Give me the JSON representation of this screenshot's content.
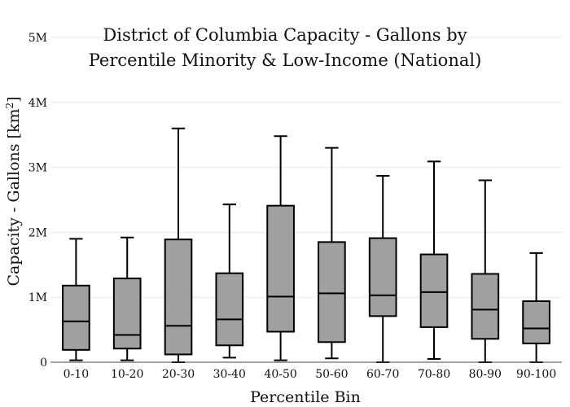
{
  "chart_data": {
    "type": "box",
    "title_lines": [
      "District of Columbia Capacity - Gallons by",
      "Percentile Minority & Low-Income (National)"
    ],
    "xlabel": "Percentile Bin",
    "ylabel_main": "Capacity - Gallons  [km",
    "ylabel_sup": "2",
    "ylabel_end": "]",
    "ylim": [
      0,
      5000000
    ],
    "yticks": [
      {
        "value": 0,
        "label": "0"
      },
      {
        "value": 1000000,
        "label": "1M"
      },
      {
        "value": 2000000,
        "label": "2M"
      },
      {
        "value": 3000000,
        "label": "3M"
      },
      {
        "value": 4000000,
        "label": "4M"
      },
      {
        "value": 5000000,
        "label": "5M"
      }
    ],
    "categories": [
      "0-10",
      "10-20",
      "20-30",
      "30-40",
      "40-50",
      "50-60",
      "60-70",
      "70-80",
      "80-90",
      "90-100"
    ],
    "boxes": [
      {
        "min": 30000,
        "q1": 190000,
        "median": 630000,
        "q3": 1180000,
        "max": 1900000
      },
      {
        "min": 30000,
        "q1": 210000,
        "median": 420000,
        "q3": 1290000,
        "max": 1920000
      },
      {
        "min": 0,
        "q1": 120000,
        "median": 560000,
        "q3": 1890000,
        "max": 3600000
      },
      {
        "min": 70000,
        "q1": 260000,
        "median": 660000,
        "q3": 1370000,
        "max": 2430000
      },
      {
        "min": 30000,
        "q1": 470000,
        "median": 1010000,
        "q3": 2410000,
        "max": 3480000
      },
      {
        "min": 60000,
        "q1": 310000,
        "median": 1060000,
        "q3": 1850000,
        "max": 3300000
      },
      {
        "min": 0,
        "q1": 710000,
        "median": 1030000,
        "q3": 1910000,
        "max": 2870000
      },
      {
        "min": 50000,
        "q1": 540000,
        "median": 1080000,
        "q3": 1660000,
        "max": 3090000
      },
      {
        "min": 0,
        "q1": 360000,
        "median": 810000,
        "q3": 1360000,
        "max": 2800000
      },
      {
        "min": 0,
        "q1": 290000,
        "median": 520000,
        "q3": 940000,
        "max": 1680000
      }
    ],
    "grid": true,
    "legend": "none",
    "box_color": "#a0a0a0"
  }
}
